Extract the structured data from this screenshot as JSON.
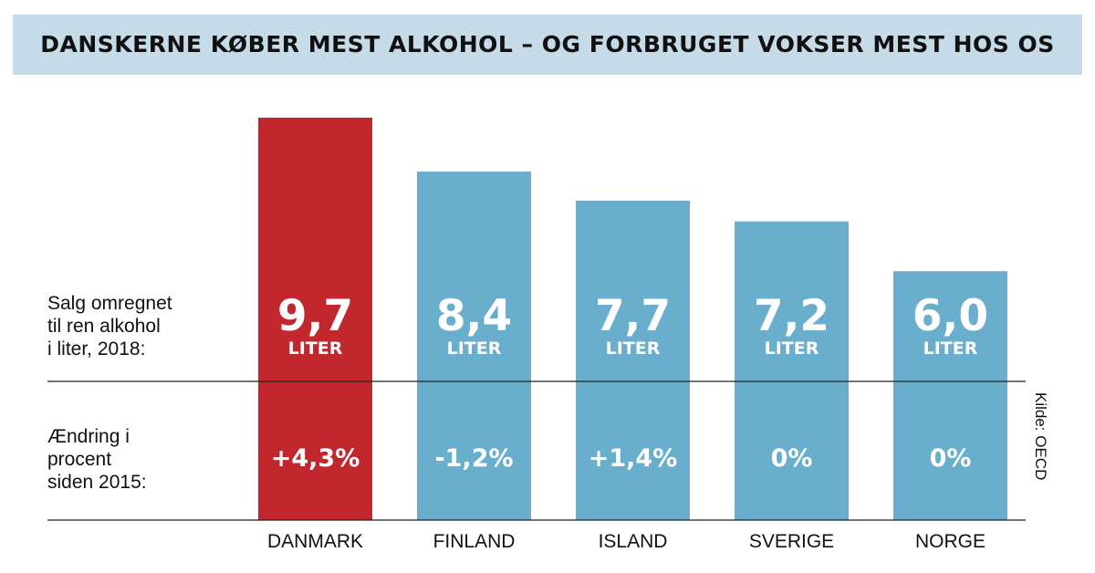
{
  "title": "DANSKERNE KØBER MEST ALKOHOL – OG FORBRUGET VOKSER MEST HOS OS",
  "labels": {
    "sales": "Salg omregnet\ntil ren alkohol\ni liter, 2018:",
    "change": "Ændring i\nprocent\nsiden 2015:"
  },
  "source": "Kilde: OECD",
  "colors": {
    "highlight": "#c1272d",
    "bar": "#6aaecd",
    "title_bg": "#c5dbe7"
  },
  "chart_data": {
    "type": "bar",
    "title": "DANSKERNE KØBER MEST ALKOHOL – OG FORBRUGET VOKSER MEST HOS OS",
    "categories": [
      "DANMARK",
      "FINLAND",
      "ISLAND",
      "SVERIGE",
      "NORGE"
    ],
    "values": [
      9.7,
      8.4,
      7.7,
      7.2,
      6.0
    ],
    "value_labels": [
      "9,7",
      "8,4",
      "7,7",
      "7,2",
      "6,0"
    ],
    "unit_label": "LITER",
    "change_labels": [
      "+4,3%",
      "-1,2%",
      "+1,4%",
      "0%",
      "0%"
    ],
    "highlight_index": 0,
    "ylim": [
      0,
      9.7
    ]
  }
}
